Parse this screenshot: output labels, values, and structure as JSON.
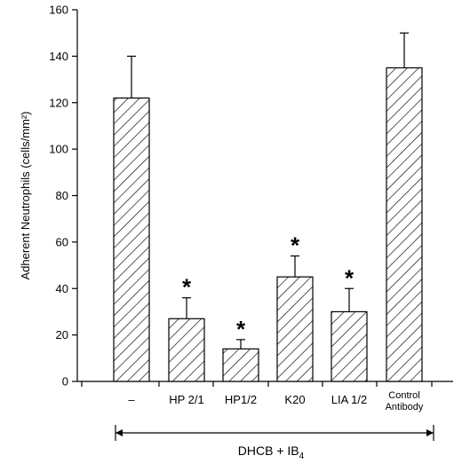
{
  "chart_data": {
    "type": "bar",
    "ylabel": "Adherent Neutrophils (cells/mm²)",
    "ylim": [
      0,
      160
    ],
    "yticks": [
      0,
      20,
      40,
      60,
      80,
      100,
      120,
      140,
      160
    ],
    "categories": [
      "–",
      "HP 2/1",
      "HP1/2",
      "K20",
      "LIA 1/2",
      "Control\nAntibody"
    ],
    "category_lines": [
      [
        "–"
      ],
      [
        "HP 2/1"
      ],
      [
        "HP1/2"
      ],
      [
        "K20"
      ],
      [
        "LIA 1/2"
      ],
      [
        "Control",
        "Antibody"
      ]
    ],
    "values": [
      122,
      27,
      14,
      45,
      30,
      135
    ],
    "errors": [
      18,
      9,
      4,
      9,
      10,
      15
    ],
    "significance": [
      "",
      "*",
      "*",
      "*",
      "*",
      ""
    ],
    "bracket_label_main": "DHCB + IB",
    "bracket_label_subscript": "4",
    "fill_pattern": "diagonal-hatch",
    "bar_color": "#000000"
  }
}
